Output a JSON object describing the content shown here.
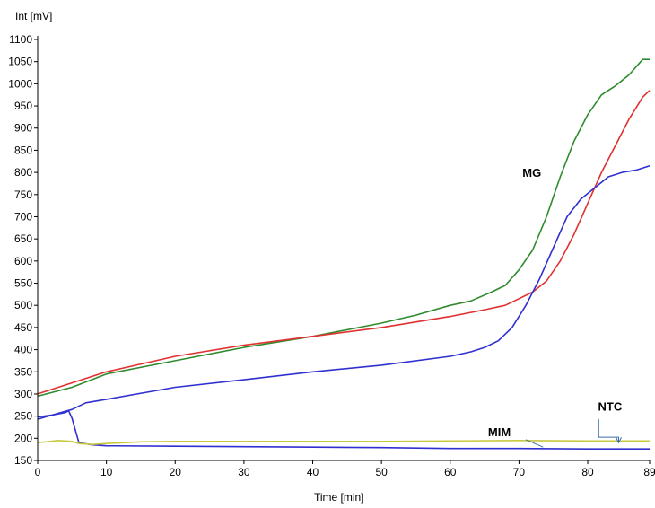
{
  "chart_data": {
    "type": "line",
    "xlabel": "Time [min]",
    "ylabel": "Int [mV]",
    "xlim": [
      0,
      89
    ],
    "ylim": [
      150,
      1100
    ],
    "xticks": [
      0,
      10,
      20,
      30,
      40,
      50,
      60,
      70,
      80,
      89
    ],
    "yticks": [
      150,
      200,
      250,
      300,
      350,
      400,
      450,
      500,
      550,
      600,
      650,
      700,
      750,
      800,
      850,
      900,
      950,
      1000,
      1050,
      1100
    ],
    "grid": false,
    "legend": "none",
    "series": [
      {
        "color": "#2e8b2e",
        "points": [
          [
            0,
            295
          ],
          [
            5,
            315
          ],
          [
            10,
            345
          ],
          [
            20,
            375
          ],
          [
            30,
            405
          ],
          [
            40,
            430
          ],
          [
            50,
            460
          ],
          [
            55,
            478
          ],
          [
            60,
            500
          ],
          [
            63,
            510
          ],
          [
            66,
            530
          ],
          [
            68,
            545
          ],
          [
            70,
            580
          ],
          [
            72,
            625
          ],
          [
            74,
            700
          ],
          [
            76,
            790
          ],
          [
            78,
            870
          ],
          [
            80,
            930
          ],
          [
            82,
            975
          ],
          [
            84,
            995
          ],
          [
            86,
            1020
          ],
          [
            88,
            1055
          ],
          [
            89,
            1055
          ]
        ]
      },
      {
        "color": "#e03030",
        "points": [
          [
            0,
            300
          ],
          [
            10,
            350
          ],
          [
            20,
            385
          ],
          [
            30,
            410
          ],
          [
            40,
            430
          ],
          [
            50,
            450
          ],
          [
            60,
            475
          ],
          [
            65,
            490
          ],
          [
            68,
            500
          ],
          [
            70,
            515
          ],
          [
            72,
            530
          ],
          [
            74,
            555
          ],
          [
            76,
            600
          ],
          [
            78,
            660
          ],
          [
            80,
            730
          ],
          [
            82,
            800
          ],
          [
            84,
            860
          ],
          [
            86,
            920
          ],
          [
            88,
            970
          ],
          [
            89,
            985
          ]
        ]
      },
      {
        "color": "#3030d0",
        "points": [
          [
            0,
            248
          ],
          [
            2,
            252
          ],
          [
            5,
            265
          ],
          [
            7,
            280
          ],
          [
            10,
            288
          ],
          [
            20,
            315
          ],
          [
            30,
            332
          ],
          [
            40,
            350
          ],
          [
            50,
            365
          ],
          [
            60,
            385
          ],
          [
            63,
            395
          ],
          [
            65,
            405
          ],
          [
            67,
            420
          ],
          [
            69,
            450
          ],
          [
            71,
            500
          ],
          [
            73,
            560
          ],
          [
            75,
            630
          ],
          [
            77,
            700
          ],
          [
            79,
            740
          ],
          [
            81,
            765
          ],
          [
            83,
            790
          ],
          [
            85,
            800
          ],
          [
            87,
            805
          ],
          [
            89,
            815
          ]
        ]
      },
      {
        "color": "#3030d0",
        "points": [
          [
            0,
            243
          ],
          [
            2,
            252
          ],
          [
            4,
            258
          ],
          [
            4.5,
            262
          ],
          [
            5,
            245
          ],
          [
            6,
            190
          ],
          [
            8,
            185
          ],
          [
            10,
            183
          ],
          [
            20,
            182
          ],
          [
            30,
            181
          ],
          [
            40,
            180
          ],
          [
            50,
            179
          ],
          [
            60,
            177
          ],
          [
            70,
            177
          ],
          [
            80,
            176
          ],
          [
            89,
            176
          ]
        ]
      },
      {
        "color": "#c8c840",
        "points": [
          [
            0,
            190
          ],
          [
            3,
            195
          ],
          [
            5,
            193
          ],
          [
            6,
            188
          ],
          [
            8,
            186
          ],
          [
            10,
            188
          ],
          [
            15,
            192
          ],
          [
            20,
            193
          ],
          [
            30,
            193
          ],
          [
            40,
            193
          ],
          [
            50,
            193
          ],
          [
            60,
            194
          ],
          [
            70,
            195
          ],
          [
            80,
            194
          ],
          [
            89,
            194
          ]
        ]
      }
    ],
    "annotations": [
      {
        "text": "MG",
        "x": 70.5,
        "y": 790
      },
      {
        "text": "NTC",
        "x": 81.5,
        "y": 262
      },
      {
        "text": "MIM",
        "x": 65.5,
        "y": 205
      }
    ]
  }
}
